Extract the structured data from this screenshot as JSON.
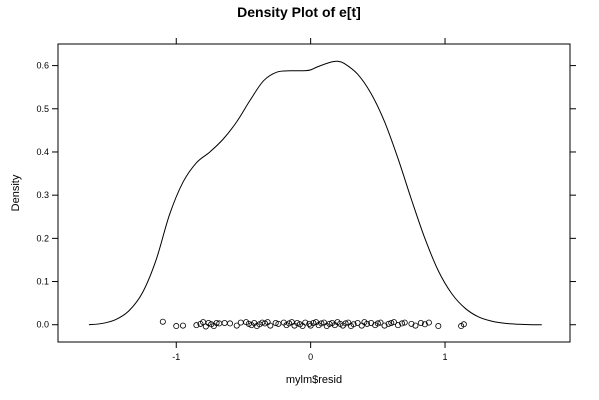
{
  "chart_data": {
    "type": "line",
    "title": "Density Plot of e[t]",
    "xlabel": "mylm$resid",
    "ylabel": "Density",
    "xlim": [
      -1.88,
      1.93
    ],
    "ylim": [
      -0.04,
      0.65
    ],
    "x_ticks": [
      -1,
      0,
      1
    ],
    "x_tick_labels": [
      "-1",
      "0",
      "1"
    ],
    "y_ticks": [
      0.0,
      0.1,
      0.2,
      0.3,
      0.4,
      0.5,
      0.6
    ],
    "y_tick_labels": [
      "0.0",
      "0.1",
      "0.2",
      "0.3",
      "0.4",
      "0.5",
      "0.6"
    ],
    "grid": false,
    "legend": "none",
    "density_curve": {
      "x": [
        -1.65,
        -1.55,
        -1.45,
        -1.35,
        -1.25,
        -1.15,
        -1.05,
        -0.95,
        -0.85,
        -0.75,
        -0.65,
        -0.55,
        -0.45,
        -0.35,
        -0.25,
        -0.15,
        -0.05,
        0.0,
        0.05,
        0.15,
        0.2,
        0.25,
        0.35,
        0.45,
        0.55,
        0.65,
        0.75,
        0.85,
        0.95,
        1.05,
        1.15,
        1.25,
        1.35,
        1.45,
        1.55,
        1.65,
        1.72
      ],
      "y": [
        0.0,
        0.003,
        0.012,
        0.033,
        0.075,
        0.15,
        0.255,
        0.33,
        0.375,
        0.4,
        0.43,
        0.47,
        0.52,
        0.565,
        0.585,
        0.588,
        0.588,
        0.59,
        0.597,
        0.608,
        0.61,
        0.605,
        0.58,
        0.535,
        0.47,
        0.385,
        0.29,
        0.2,
        0.125,
        0.072,
        0.038,
        0.018,
        0.008,
        0.003,
        0.001,
        0.0,
        0.0
      ]
    },
    "rug_points": {
      "y": 0.0,
      "x": [
        -1.1,
        -1.0,
        -0.95,
        -0.85,
        -0.82,
        -0.8,
        -0.78,
        -0.76,
        -0.74,
        -0.72,
        -0.7,
        -0.68,
        -0.64,
        -0.6,
        -0.55,
        -0.52,
        -0.48,
        -0.46,
        -0.44,
        -0.42,
        -0.4,
        -0.38,
        -0.36,
        -0.34,
        -0.32,
        -0.3,
        -0.26,
        -0.24,
        -0.2,
        -0.18,
        -0.16,
        -0.14,
        -0.12,
        -0.1,
        -0.08,
        -0.06,
        -0.04,
        -0.01,
        0.0,
        0.02,
        0.04,
        0.06,
        0.08,
        0.1,
        0.12,
        0.14,
        0.16,
        0.18,
        0.2,
        0.22,
        0.24,
        0.26,
        0.28,
        0.3,
        0.32,
        0.35,
        0.38,
        0.4,
        0.42,
        0.45,
        0.48,
        0.5,
        0.52,
        0.55,
        0.58,
        0.6,
        0.62,
        0.65,
        0.68,
        0.7,
        0.75,
        0.78,
        0.82,
        0.85,
        0.88,
        0.95,
        1.12,
        1.14
      ],
      "jitter": [
        0.007,
        -0.003,
        -0.002,
        -0.001,
        0.002,
        0.006,
        -0.004,
        0.004,
        0.001,
        -0.003,
        0.004,
        0.003,
        0.004,
        0.003,
        -0.002,
        0.005,
        0.006,
        0.002,
        -0.001,
        0.004,
        -0.003,
        0.001,
        0.005,
        0.003,
        0.006,
        -0.002,
        0.004,
        0.002,
        0.005,
        -0.001,
        0.003,
        0.006,
        -0.002,
        0.004,
        0.001,
        -0.003,
        0.005,
        0.002,
        -0.002,
        0.004,
        0.006,
        -0.001,
        0.003,
        0.005,
        -0.003,
        0.002,
        0.004,
        -0.001,
        0.006,
        0.002,
        -0.002,
        0.003,
        0.005,
        -0.003,
        0.001,
        0.004,
        -0.002,
        0.006,
        0.002,
        0.004,
        -0.001,
        0.003,
        0.005,
        -0.002,
        0.002,
        0.004,
        0.006,
        -0.001,
        0.003,
        0.005,
        0.002,
        -0.002,
        0.004,
        0.001,
        0.005,
        -0.003,
        -0.003,
        0.001
      ]
    }
  }
}
